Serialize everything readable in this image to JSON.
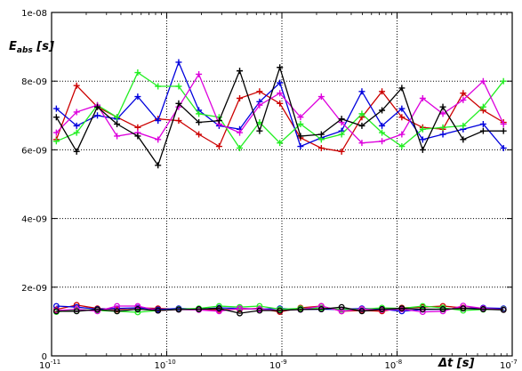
{
  "chart_data": {
    "type": "line",
    "title": "",
    "xlabel": "Δt [s]",
    "ylabel": {
      "main": "E",
      "sub": "abs",
      "unit": " [s]"
    },
    "x_scale": "log",
    "xlim": [
      1e-11,
      1e-07
    ],
    "ylim": [
      0,
      1e-08
    ],
    "grid": true,
    "legend": "none",
    "x_ticks": [
      {
        "value": 1e-11,
        "base": "10",
        "exp": "-11"
      },
      {
        "value": 1e-10,
        "base": "10",
        "exp": "-10"
      },
      {
        "value": 1e-09,
        "base": "10",
        "exp": "-9"
      },
      {
        "value": 1e-08,
        "base": "10",
        "exp": "-8"
      },
      {
        "value": 1e-07,
        "base": "10",
        "exp": "-7"
      }
    ],
    "y_ticks": [
      {
        "value": 0,
        "label": "0"
      },
      {
        "value": 2e-09,
        "label": "2e-09"
      },
      {
        "value": 4e-09,
        "label": "4e-09"
      },
      {
        "value": 6e-09,
        "label": "6e-09"
      },
      {
        "value": 8e-09,
        "label": "8e-09"
      },
      {
        "value": 1e-08,
        "label": "1e-08"
      }
    ],
    "x": [
      1.1e-11,
      1.65e-11,
      2.5e-11,
      3.7e-11,
      5.6e-11,
      8.4e-11,
      1.27e-10,
      1.9e-10,
      2.85e-10,
      4.3e-10,
      6.4e-10,
      9.6e-10,
      1.45e-09,
      2.2e-09,
      3.3e-09,
      4.95e-09,
      7.4e-09,
      1.1e-08,
      1.67e-08,
      2.5e-08,
      3.75e-08,
      5.6e-08,
      8.4e-08
    ],
    "series": [
      {
        "color": "#cc0000",
        "marker": "plus",
        "values": [
          6.3e-09,
          7.87e-09,
          7.25e-09,
          6.95e-09,
          6.65e-09,
          6.9e-09,
          6.85e-09,
          6.45e-09,
          6.1e-09,
          7.5e-09,
          7.7e-09,
          7.35e-09,
          6.35e-09,
          6.05e-09,
          5.95e-09,
          6.95e-09,
          7.7e-09,
          6.95e-09,
          6.65e-09,
          6.6e-09,
          7.65e-09,
          7.15e-09,
          6.8e-09
        ]
      },
      {
        "color": "#0000dd",
        "marker": "plus",
        "values": [
          7.2e-09,
          6.7e-09,
          7e-09,
          6.9e-09,
          7.55e-09,
          6.85e-09,
          8.55e-09,
          7.15e-09,
          6.7e-09,
          6.6e-09,
          7.4e-09,
          7.95e-09,
          6.1e-09,
          6.35e-09,
          6.55e-09,
          7.7e-09,
          6.7e-09,
          7.2e-09,
          6.3e-09,
          6.45e-09,
          6.6e-09,
          6.75e-09,
          6.05e-09
        ]
      },
      {
        "color": "#22ee22",
        "marker": "plus",
        "values": [
          6.25e-09,
          6.5e-09,
          7.3e-09,
          6.95e-09,
          8.25e-09,
          7.85e-09,
          7.85e-09,
          7.05e-09,
          6.95e-09,
          6.05e-09,
          6.8e-09,
          6.2e-09,
          6.75e-09,
          6.3e-09,
          6.45e-09,
          7.05e-09,
          6.5e-09,
          6.1e-09,
          6.6e-09,
          6.65e-09,
          6.7e-09,
          7.25e-09,
          8e-09
        ]
      },
      {
        "color": "#dd00dd",
        "marker": "plus",
        "values": [
          6.5e-09,
          7.1e-09,
          7.3e-09,
          6.4e-09,
          6.5e-09,
          6.3e-09,
          7.25e-09,
          8.2e-09,
          6.75e-09,
          6.5e-09,
          7.3e-09,
          7.65e-09,
          6.95e-09,
          7.55e-09,
          6.8e-09,
          6.2e-09,
          6.25e-09,
          6.45e-09,
          7.5e-09,
          7.05e-09,
          7.45e-09,
          8e-09,
          6.75e-09
        ]
      },
      {
        "color": "#000000",
        "marker": "plus",
        "values": [
          6.95e-09,
          5.95e-09,
          7.25e-09,
          6.75e-09,
          6.4e-09,
          5.55e-09,
          7.35e-09,
          6.8e-09,
          6.85e-09,
          8.3e-09,
          6.55e-09,
          8.4e-09,
          6.4e-09,
          6.45e-09,
          6.9e-09,
          6.7e-09,
          7.15e-09,
          7.8e-09,
          6e-09,
          7.25e-09,
          6.3e-09,
          6.55e-09,
          6.55e-09
        ]
      },
      {
        "color": "#cc0000",
        "marker": "circle",
        "values": [
          1.35e-09,
          1.48e-09,
          1.38e-09,
          1.35e-09,
          1.4e-09,
          1.38e-09,
          1.36e-09,
          1.36e-09,
          1.34e-09,
          1.36e-09,
          1.38e-09,
          1.28e-09,
          1.4e-09,
          1.45e-09,
          1.3e-09,
          1.32e-09,
          1.3e-09,
          1.4e-09,
          1.42e-09,
          1.45e-09,
          1.4e-09,
          1.38e-09,
          1.35e-09
        ]
      },
      {
        "color": "#0000dd",
        "marker": "circle",
        "values": [
          1.45e-09,
          1.42e-09,
          1.36e-09,
          1.38e-09,
          1.4e-09,
          1.35e-09,
          1.38e-09,
          1.36e-09,
          1.4e-09,
          1.38e-09,
          1.36e-09,
          1.38e-09,
          1.35e-09,
          1.36e-09,
          1.35e-09,
          1.38e-09,
          1.36e-09,
          1.3e-09,
          1.35e-09,
          1.36e-09,
          1.38e-09,
          1.4e-09,
          1.38e-09
        ]
      },
      {
        "color": "#22ee22",
        "marker": "circle",
        "values": [
          1.28e-09,
          1.35e-09,
          1.32e-09,
          1.3e-09,
          1.27e-09,
          1.32e-09,
          1.36e-09,
          1.38e-09,
          1.45e-09,
          1.42e-09,
          1.45e-09,
          1.36e-09,
          1.38e-09,
          1.4e-09,
          1.35e-09,
          1.36e-09,
          1.4e-09,
          1.38e-09,
          1.45e-09,
          1.4e-09,
          1.32e-09,
          1.35e-09,
          1.36e-09
        ]
      },
      {
        "color": "#dd00dd",
        "marker": "circle",
        "values": [
          1.32e-09,
          1.36e-09,
          1.3e-09,
          1.45e-09,
          1.45e-09,
          1.32e-09,
          1.35e-09,
          1.34e-09,
          1.3e-09,
          1.38e-09,
          1.36e-09,
          1.32e-09,
          1.35e-09,
          1.45e-09,
          1.3e-09,
          1.36e-09,
          1.34e-09,
          1.36e-09,
          1.28e-09,
          1.3e-09,
          1.46e-09,
          1.38e-09,
          1.35e-09
        ]
      },
      {
        "color": "#000000",
        "marker": "circle",
        "values": [
          1.3e-09,
          1.3e-09,
          1.35e-09,
          1.3e-09,
          1.36e-09,
          1.32e-09,
          1.35e-09,
          1.36e-09,
          1.38e-09,
          1.24e-09,
          1.32e-09,
          1.32e-09,
          1.35e-09,
          1.36e-09,
          1.42e-09,
          1.3e-09,
          1.36e-09,
          1.38e-09,
          1.36e-09,
          1.36e-09,
          1.38e-09,
          1.36e-09,
          1.34e-09
        ]
      }
    ]
  }
}
